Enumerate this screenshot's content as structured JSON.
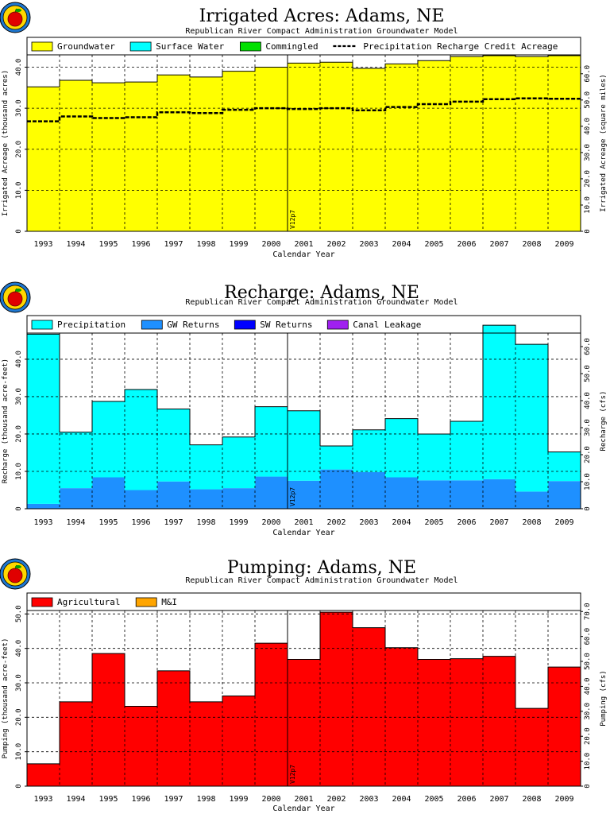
{
  "chart_data": [
    {
      "type": "area",
      "title": "Irrigated Acres: Adams, NE",
      "subtitle": "Republican River Compact Administration Groundwater Model",
      "xlabel": "Calendar Year",
      "ylabel": "Irrigated Acreage (thousand acres)",
      "ylabel_right": "Irrigated Acreage (square miles)",
      "categories": [
        "1993",
        "1994",
        "1995",
        "1996",
        "1997",
        "1998",
        "1999",
        "2000",
        "2001",
        "2002",
        "2003",
        "2004",
        "2005",
        "2006",
        "2007",
        "2008",
        "2009"
      ],
      "ylim": [
        0,
        43
      ],
      "yticks": [
        "0",
        "10.0",
        "20.0",
        "30.0",
        "40.0"
      ],
      "ytick_values": [
        0,
        10,
        20,
        30,
        40
      ],
      "ylim_right": [
        0,
        67.2
      ],
      "yticks_right": [
        "0",
        "10.0",
        "20.0",
        "30.0",
        "40.0",
        "50.0",
        "60.0"
      ],
      "ytick_right_values": [
        0,
        10,
        20,
        30,
        40,
        50,
        60
      ],
      "annotation": "V12p7",
      "series": [
        {
          "name": "Groundwater",
          "color": "#ffff00",
          "values": [
            35.2,
            36.8,
            36.2,
            36.4,
            38.1,
            37.6,
            39.0,
            40.0,
            41.0,
            41.2,
            39.7,
            40.8,
            41.6,
            42.6,
            42.8,
            42.6,
            42.8
          ]
        },
        {
          "name": "Surface Water",
          "color": "#00ffff",
          "values": [
            0,
            0,
            0,
            0,
            0,
            0,
            0,
            0,
            0,
            0,
            0,
            0,
            0,
            0,
            0,
            0,
            0
          ]
        },
        {
          "name": "Commingled",
          "color": "#00e000",
          "values": [
            0,
            0,
            0,
            0,
            0,
            0,
            0,
            0,
            0,
            0,
            0,
            0,
            0,
            0,
            0,
            0,
            0
          ]
        }
      ],
      "line_series": {
        "name": "Precipitation Recharge Credit Acreage",
        "values": [
          26.8,
          28.0,
          27.6,
          27.8,
          29.0,
          28.8,
          29.6,
          30.0,
          29.8,
          30.0,
          29.5,
          30.3,
          31.0,
          31.6,
          32.2,
          32.4,
          32.3
        ]
      }
    },
    {
      "type": "area",
      "title": "Recharge: Adams, NE",
      "subtitle": "Republican River Compact Administration Groundwater Model",
      "xlabel": "Calendar Year",
      "ylabel": "Recharge (thousand acre-feet)",
      "ylabel_right": "Recharge (cfs)",
      "categories": [
        "1993",
        "1994",
        "1995",
        "1996",
        "1997",
        "1998",
        "1999",
        "2000",
        "2001",
        "2002",
        "2003",
        "2004",
        "2005",
        "2006",
        "2007",
        "2008",
        "2009"
      ],
      "ylim": [
        0,
        47
      ],
      "yticks": [
        "0",
        "10.0",
        "20.0",
        "30.0",
        "40.0"
      ],
      "ytick_values": [
        0,
        10,
        20,
        30,
        40
      ],
      "ylim_right": [
        0,
        65
      ],
      "yticks_right": [
        "0",
        "10.0",
        "20.0",
        "30.0",
        "40.0",
        "50.0",
        "60.0"
      ],
      "ytick_right_values": [
        0,
        10,
        20,
        30,
        40,
        50,
        60
      ],
      "annotation": "V12p7",
      "series": [
        {
          "name": "GW Returns",
          "color": "#1e90ff",
          "values": [
            1.3,
            5.5,
            8.4,
            5.0,
            7.3,
            5.2,
            5.5,
            8.6,
            7.5,
            10.5,
            9.8,
            8.4,
            7.6,
            7.6,
            7.9,
            4.6,
            7.4
          ]
        },
        {
          "name": "Precipitation",
          "color": "#00ffff",
          "values": [
            45.4,
            15.0,
            20.3,
            26.9,
            19.4,
            11.9,
            13.7,
            18.7,
            18.7,
            6.3,
            11.3,
            15.7,
            12.4,
            15.8,
            41.2,
            39.4,
            7.8
          ]
        },
        {
          "name": "SW Returns",
          "color": "#0000ff",
          "values": [
            0,
            0,
            0,
            0,
            0,
            0,
            0,
            0,
            0,
            0,
            0,
            0,
            0,
            0,
            0,
            0,
            0
          ]
        },
        {
          "name": "Canal Leakage",
          "color": "#a020f0",
          "values": [
            0,
            0,
            0,
            0,
            0,
            0,
            0,
            0,
            0,
            0,
            0,
            0,
            0,
            0,
            0,
            0,
            0
          ]
        }
      ],
      "legend_order": [
        1,
        0,
        2,
        3
      ]
    },
    {
      "type": "area",
      "title": "Pumping: Adams, NE",
      "subtitle": "Republican River Compact Administration Groundwater Model",
      "xlabel": "Calendar Year",
      "ylabel": "Pumping (thousand acre-feet)",
      "ylabel_right": "Pumping (cfs)",
      "categories": [
        "1993",
        "1994",
        "1995",
        "1996",
        "1997",
        "1998",
        "1999",
        "2000",
        "2001",
        "2002",
        "2003",
        "2004",
        "2005",
        "2006",
        "2007",
        "2008",
        "2009"
      ],
      "ylim": [
        0,
        51
      ],
      "yticks": [
        "0",
        "10.0",
        "20.0",
        "30.0",
        "40.0",
        "50.0"
      ],
      "ytick_values": [
        0,
        10,
        20,
        30,
        40,
        50
      ],
      "ylim_right": [
        0,
        70.4
      ],
      "yticks_right": [
        "0",
        "10.0",
        "20.0",
        "30.0",
        "40.0",
        "50.0",
        "60.0",
        "70.0"
      ],
      "ytick_right_values": [
        0,
        10,
        20,
        30,
        40,
        50,
        60,
        70
      ],
      "annotation": "V12p7",
      "series": [
        {
          "name": "Agricultural",
          "color": "#ff0000",
          "values": [
            6.5,
            24.5,
            38.5,
            23.2,
            33.5,
            24.5,
            26.2,
            41.5,
            36.8,
            50.5,
            46.0,
            40.2,
            36.8,
            37.0,
            37.7,
            22.6,
            34.6
          ]
        },
        {
          "name": "M&I",
          "color": "#ffa500",
          "values": [
            0,
            0,
            0,
            0,
            0,
            0,
            0,
            0,
            0,
            0,
            0,
            0,
            0,
            0,
            0,
            0,
            0
          ]
        }
      ]
    }
  ]
}
